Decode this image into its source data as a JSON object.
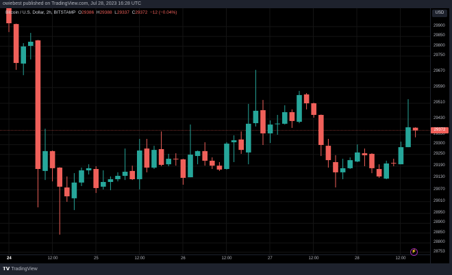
{
  "header": {
    "published": "owiebest published on TradingView.com, Jul 28, 2023 16:28 UTC"
  },
  "legend": {
    "symbol": "Bitcoin / U.S. Dollar, 2h, BITSTAMP",
    "o_label": "O",
    "o": "29386",
    "h_label": "H",
    "h": "29388",
    "l_label": "L",
    "l": "29337",
    "c_label": "C",
    "c": "29372",
    "change": "−12 (−0.04%)"
  },
  "currency": "USD",
  "current_price": "29372",
  "footer": {
    "brand": "TradingView",
    "logo": "TV"
  },
  "colors": {
    "up": "#26a69a",
    "down": "#f0605a",
    "background": "#000000",
    "price_line": "#f0605a"
  },
  "icons": {
    "alert": "lightning-icon"
  },
  "chart_data": {
    "type": "candlestick",
    "interval": "2h",
    "ylim": [
      28745,
      30010
    ],
    "grid": true,
    "y_ticks": [
      "29900",
      "29850",
      "29800",
      "29750",
      "29670",
      "29590",
      "29510",
      "29430",
      "29350",
      "29300",
      "29250",
      "29190",
      "29130",
      "29070",
      "29010",
      "28950",
      "28900",
      "28850",
      "28800",
      "28753"
    ],
    "x_ticks": [
      "24",
      "12:00",
      "25",
      "12:00",
      "26",
      "12:00",
      "27",
      "12:00",
      "28",
      "12:00"
    ],
    "candles": [
      [
        30007,
        30018,
        29872,
        29917
      ],
      [
        29913,
        29915,
        29680,
        29715
      ],
      [
        29712,
        29816,
        29653,
        29799
      ],
      [
        29802,
        29868,
        29733,
        29823
      ],
      [
        29830,
        29832,
        28981,
        29176
      ],
      [
        29166,
        29381,
        29120,
        29267
      ],
      [
        29267,
        29270,
        29113,
        29180
      ],
      [
        29183,
        29185,
        28842,
        29086
      ],
      [
        29082,
        29138,
        29009,
        29037
      ],
      [
        29027,
        29155,
        28967,
        29107
      ],
      [
        29107,
        29183,
        29089,
        29169
      ],
      [
        29169,
        29200,
        29148,
        29180
      ],
      [
        29176,
        29190,
        29054,
        29079
      ],
      [
        29086,
        29169,
        29072,
        29110
      ],
      [
        29110,
        29138,
        29068,
        29124
      ],
      [
        29124,
        29159,
        29113,
        29141
      ],
      [
        29141,
        29280,
        29120,
        29162
      ],
      [
        29166,
        29193,
        29120,
        29124
      ],
      [
        29124,
        29329,
        29072,
        29270
      ],
      [
        29280,
        29329,
        29159,
        29183
      ],
      [
        29183,
        29294,
        29176,
        29273
      ],
      [
        29277,
        29367,
        29190,
        29197
      ],
      [
        29200,
        29253,
        29190,
        29228
      ],
      [
        29228,
        29256,
        29193,
        29225
      ],
      [
        29225,
        29228,
        29096,
        29131
      ],
      [
        29134,
        29402,
        29134,
        29249
      ],
      [
        29242,
        29270,
        29200,
        29267
      ],
      [
        29267,
        29312,
        29193,
        29218
      ],
      [
        29218,
        29235,
        29176,
        29193
      ],
      [
        29193,
        29211,
        29166,
        29173
      ],
      [
        29176,
        29312,
        29173,
        29305
      ],
      [
        29312,
        29347,
        29211,
        29322
      ],
      [
        29326,
        29367,
        29253,
        29273
      ],
      [
        29260,
        29507,
        29200,
        29406
      ],
      [
        29409,
        29680,
        29392,
        29472
      ],
      [
        29475,
        29527,
        29298,
        29357
      ],
      [
        29357,
        29423,
        29308,
        29402
      ],
      [
        29406,
        29451,
        29350,
        29407
      ],
      [
        29406,
        29500,
        29402,
        29465
      ],
      [
        29465,
        29479,
        29385,
        29420
      ],
      [
        29416,
        29573,
        29409,
        29552
      ],
      [
        29555,
        29562,
        29479,
        29510
      ],
      [
        29510,
        29513,
        29437,
        29451
      ],
      [
        29451,
        29453,
        29242,
        29298
      ],
      [
        29294,
        29329,
        29183,
        29221
      ],
      [
        29211,
        29246,
        29082,
        29159
      ],
      [
        29159,
        29228,
        29124,
        29180
      ],
      [
        29180,
        29235,
        29176,
        29221
      ],
      [
        29214,
        29301,
        29211,
        29260
      ],
      [
        29256,
        29280,
        29190,
        29246
      ],
      [
        29253,
        29256,
        29155,
        29180
      ],
      [
        29176,
        29200,
        29131,
        29138
      ],
      [
        29127,
        29218,
        29124,
        29204
      ],
      [
        29207,
        29228,
        29190,
        29204
      ],
      [
        29200,
        29315,
        29200,
        29287
      ],
      [
        29287,
        29531,
        29287,
        29388
      ],
      [
        29386,
        29388,
        29337,
        29372
      ]
    ]
  }
}
